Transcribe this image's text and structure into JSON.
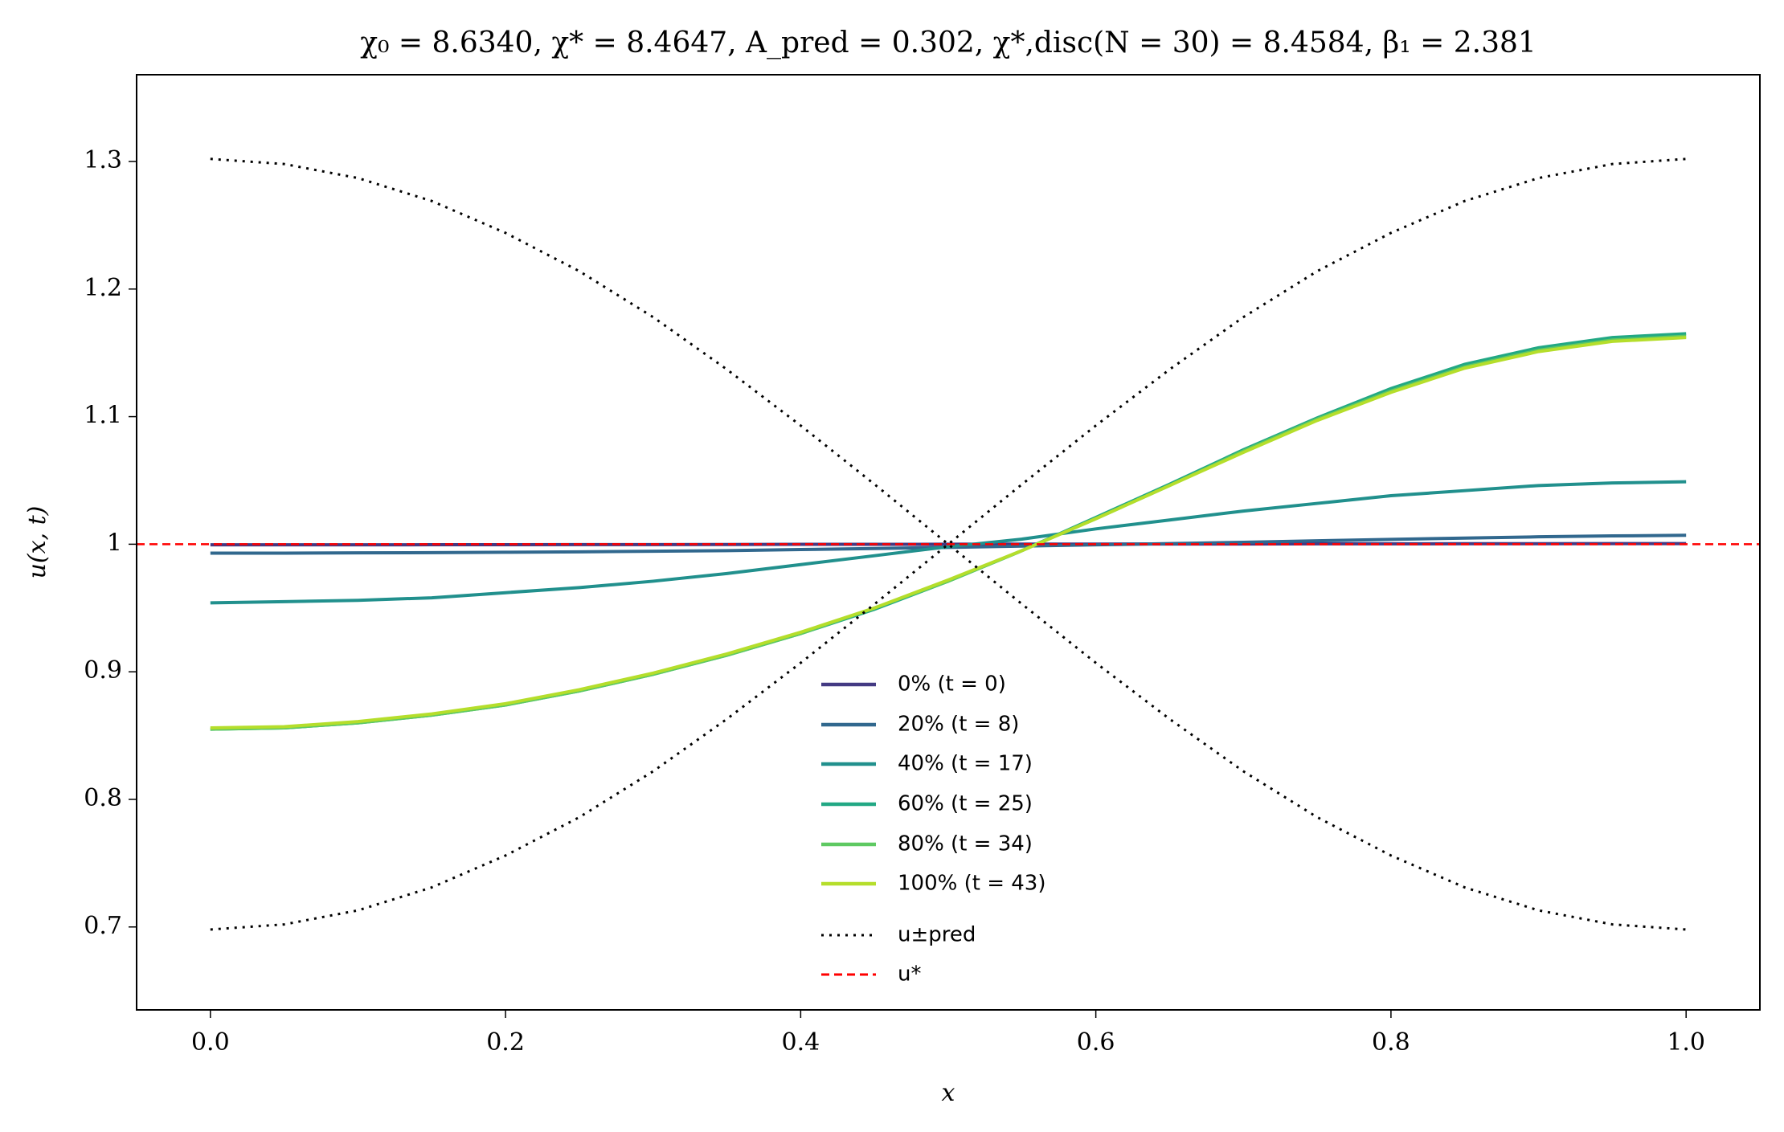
{
  "chart_data": {
    "type": "line",
    "title": "χ₀ = 8.6340,  χ* = 8.4647,  A_pred = 0.302,  χ*,disc(N = 30) = 8.4584,  β₁ = 2.381",
    "xlabel": "x",
    "ylabel": "u(x, t)",
    "xlim": [
      -0.05,
      1.05
    ],
    "ylim": [
      0.635,
      1.368
    ],
    "xticks": [
      {
        "value": 0,
        "label": "0.0"
      },
      {
        "value": 0.2,
        "label": "0.2"
      },
      {
        "value": 0.4,
        "label": "0.4"
      },
      {
        "value": 0.6,
        "label": "0.6"
      },
      {
        "value": 0.8,
        "label": "0.8"
      },
      {
        "value": 1,
        "label": "1.0"
      }
    ],
    "yticks": [
      0.7,
      0.8,
      0.9,
      1.0,
      1.1,
      1.2,
      1.3
    ],
    "legend": "lower center",
    "x": [
      0,
      0.05,
      0.1,
      0.15,
      0.2,
      0.25,
      0.3,
      0.35,
      0.4,
      0.45,
      0.5,
      0.55,
      0.6,
      0.65,
      0.7,
      0.75,
      0.8,
      0.85,
      0.9,
      0.95,
      1
    ],
    "series": [
      {
        "name": "0% (t = 0)",
        "color": "#443a83",
        "style": "solid",
        "values": [
          0.9995,
          0.9995,
          0.9995,
          0.9996,
          0.9996,
          0.9997,
          0.9997,
          0.9998,
          0.9999,
          0.9999,
          1.0,
          1.0001,
          1.0001,
          1.0002,
          1.0002,
          1.0003,
          1.0003,
          1.0004,
          1.0004,
          1.0005,
          1.0005
        ]
      },
      {
        "name": "20% (t = 8)",
        "color": "#31688e",
        "style": "solid",
        "values": [
          0.993,
          0.993,
          0.9932,
          0.9934,
          0.9937,
          0.994,
          0.9945,
          0.995,
          0.9958,
          0.9966,
          0.9975,
          0.9985,
          0.9995,
          1.0005,
          1.0015,
          1.0027,
          1.0038,
          1.0048,
          1.0058,
          1.0065,
          1.007
        ]
      },
      {
        "name": "40% (t = 17)",
        "color": "#21908d",
        "style": "solid",
        "values": [
          0.954,
          0.955,
          0.956,
          0.958,
          0.962,
          0.966,
          0.971,
          0.977,
          0.984,
          0.991,
          0.998,
          1.004,
          1.012,
          1.019,
          1.026,
          1.032,
          1.038,
          1.042,
          1.046,
          1.048,
          1.049
        ]
      },
      {
        "name": "60% (t = 25)",
        "color": "#22a884",
        "style": "solid",
        "values": [
          0.855,
          0.856,
          0.86,
          0.866,
          0.874,
          0.885,
          0.898,
          0.913,
          0.93,
          0.949,
          0.971,
          0.995,
          1.021,
          1.047,
          1.074,
          1.099,
          1.122,
          1.141,
          1.154,
          1.162,
          1.165
        ]
      },
      {
        "name": "80% (t = 34)",
        "color": "#5ec962",
        "style": "solid",
        "values": [
          0.855,
          0.856,
          0.86,
          0.866,
          0.874,
          0.885,
          0.898,
          0.913,
          0.93,
          0.95,
          0.971,
          0.995,
          1.02,
          1.046,
          1.073,
          1.098,
          1.12,
          1.139,
          1.152,
          1.16,
          1.163
        ]
      },
      {
        "name": "100% (t = 43)",
        "color": "#b5de2b",
        "style": "solid",
        "values": [
          0.856,
          0.857,
          0.861,
          0.867,
          0.875,
          0.886,
          0.899,
          0.914,
          0.931,
          0.95,
          0.972,
          0.995,
          1.02,
          1.046,
          1.072,
          1.097,
          1.119,
          1.138,
          1.151,
          1.159,
          1.162
        ]
      },
      {
        "name": "u±pred",
        "color": "#000000",
        "style": "dotted",
        "values": [
          1.302,
          1.298,
          1.287,
          1.269,
          1.244,
          1.214,
          1.178,
          1.137,
          1.093,
          1.047,
          1.0,
          0.953,
          0.907,
          0.863,
          0.822,
          0.786,
          0.756,
          0.731,
          0.713,
          0.702,
          0.698
        ],
        "lower": [
          0.698,
          0.702,
          0.713,
          0.731,
          0.756,
          0.786,
          0.822,
          0.863,
          0.907,
          0.953,
          1.0,
          1.047,
          1.093,
          1.137,
          1.178,
          1.214,
          1.244,
          1.269,
          1.287,
          1.298,
          1.302
        ]
      }
    ],
    "hline": {
      "name": "u*",
      "value": 1.0,
      "color": "#ff0000",
      "style": "dashed"
    }
  }
}
